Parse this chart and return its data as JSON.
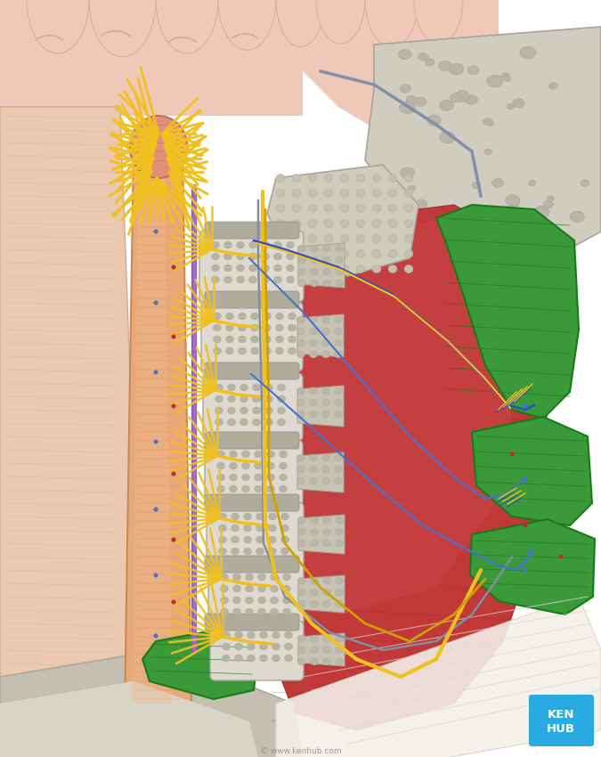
{
  "background_color": "#ffffff",
  "kenhub_color": "#29abe2",
  "kenhub_text": "KEN\nHUB",
  "watermark": "© www.kenhub.com",
  "colors": {
    "brain_pink": "#f0c8b8",
    "brain_fold_line": "#d4a898",
    "brain_pale": "#f5ddd5",
    "spinal_cord": "#e8a878",
    "spinal_cord_dark": "#c88858",
    "spinal_cord_light": "#f0b888",
    "medulla": "#e0907a",
    "medulla_dark": "#c07060",
    "vertebrae": "#c8c4b4",
    "vertebrae_inner": "#dedad0",
    "vertebrae_spongy_hole": "#b8b4a4",
    "disc_color": "#b0ac9c",
    "nerve_yellow": "#f0c020",
    "nerve_yellow_dark": "#d0a000",
    "nerve_blue": "#3050b8",
    "nerve_blue2": "#4870d0",
    "nerve_red": "#c82820",
    "nerve_gray": "#8090a0",
    "muscle_red": "#c03838",
    "muscle_red_light": "#d05050",
    "muscle_red_dark": "#a02828",
    "muscle_green": "#3a9a3a",
    "muscle_green_light": "#50b050",
    "muscle_green_dark": "#1a7a1a",
    "bone_gray": "#c4bfb0",
    "bone_light": "#d8d4c8",
    "bone_dark": "#a8a498",
    "neck_skin": "#ebc8b0",
    "neck_skin_dark": "#d4a890",
    "skull_bone": "#d0ccc0",
    "purple_line": "#9060c0",
    "fascia_white": "#f4f0e8",
    "atlas_bone": "#d0ccbc"
  }
}
